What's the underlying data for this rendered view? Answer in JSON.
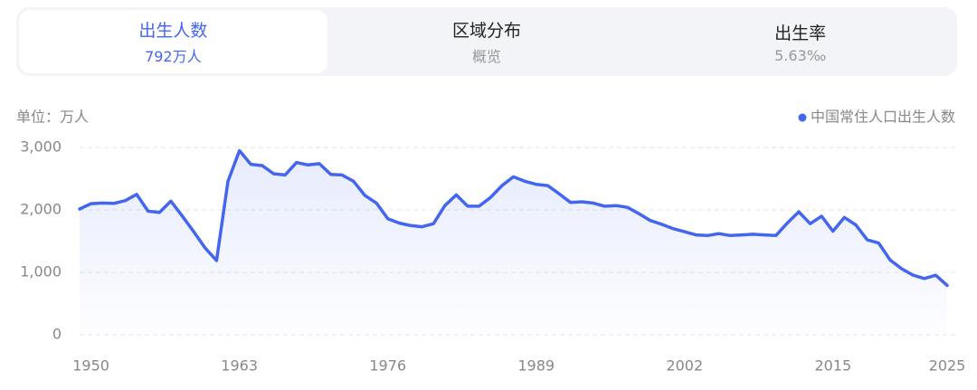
{
  "tabs": [
    {
      "title": "出生人数",
      "subtitle": "792万人",
      "active": true
    },
    {
      "title": "区域分布",
      "subtitle": "概览",
      "active": false
    },
    {
      "title": "出生率",
      "subtitle": "5.63‰",
      "active": false
    }
  ],
  "chart_data": {
    "type": "line",
    "unit_label": "单位：万人",
    "x": [
      1949,
      1950,
      1951,
      1952,
      1953,
      1954,
      1955,
      1956,
      1957,
      1958,
      1959,
      1960,
      1961,
      1962,
      1963,
      1964,
      1965,
      1966,
      1967,
      1968,
      1969,
      1970,
      1971,
      1972,
      1973,
      1974,
      1975,
      1976,
      1977,
      1978,
      1979,
      1980,
      1981,
      1982,
      1983,
      1984,
      1985,
      1986,
      1987,
      1988,
      1989,
      1990,
      1991,
      1992,
      1993,
      1994,
      1995,
      1996,
      1997,
      1998,
      1999,
      2000,
      2001,
      2002,
      2003,
      2004,
      2005,
      2006,
      2007,
      2008,
      2009,
      2010,
      2011,
      2012,
      2013,
      2014,
      2015,
      2016,
      2017,
      2018,
      2019,
      2020,
      2021,
      2022,
      2023,
      2024,
      2025
    ],
    "series": [
      {
        "name": "中国常住人口出生人数",
        "color": "#4466ee",
        "values": [
          2014,
          2100,
          2110,
          2105,
          2150,
          2250,
          1980,
          1960,
          2140,
          1900,
          1650,
          1390,
          1190,
          2460,
          2950,
          2730,
          2710,
          2580,
          2560,
          2760,
          2720,
          2740,
          2570,
          2560,
          2460,
          2230,
          2110,
          1860,
          1790,
          1750,
          1730,
          1780,
          2070,
          2240,
          2060,
          2060,
          2200,
          2390,
          2530,
          2460,
          2410,
          2390,
          2260,
          2120,
          2130,
          2110,
          2060,
          2070,
          2040,
          1940,
          1830,
          1770,
          1700,
          1650,
          1600,
          1590,
          1620,
          1590,
          1600,
          1610,
          1600,
          1590,
          1790,
          1970,
          1780,
          1900,
          1660,
          1880,
          1760,
          1520,
          1470,
          1200,
          1060,
          956,
          902,
          954,
          792
        ]
      }
    ],
    "xlim": [
      1949,
      2025
    ],
    "xticks": [
      1950,
      1963,
      1976,
      1989,
      2002,
      2015,
      2025
    ],
    "ylim": [
      0,
      3000
    ],
    "yticks": [
      0,
      {
        "value": 1000,
        "label": "1,000"
      },
      {
        "value": 2000,
        "label": "2,000"
      },
      {
        "value": 3000,
        "label": "3,000"
      }
    ],
    "grid": true,
    "legend": "top-right",
    "area": true
  }
}
